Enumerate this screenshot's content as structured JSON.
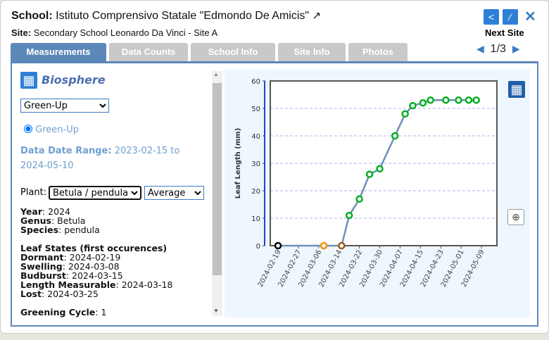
{
  "header": {
    "school_label": "School:",
    "school_name": "Istituto Comprensivo Statale \"Edmondo De Amicis\"",
    "site_label": "Site:",
    "site_name": "Secondary School Leonardo Da Vinci - Site A",
    "next_site": "Next Site",
    "pager": "1/3"
  },
  "tabs": [
    {
      "label": "Measurements",
      "active": true
    },
    {
      "label": "Data Counts"
    },
    {
      "label": "School Info"
    },
    {
      "label": "Site Info"
    },
    {
      "label": "Photos"
    }
  ],
  "panel": {
    "protocol": "Biosphere",
    "protocol_select": "Green-Up",
    "radio_label": "Green-Up",
    "date_range_label": "Data Date Range:",
    "date_range_value": "2023-02-15 to 2024-05-10",
    "plant_label": "Plant:",
    "plant_select": "Betula / pendula",
    "stat_select": "Average",
    "info": [
      {
        "k": "Year",
        "v": "2024"
      },
      {
        "k": "Genus",
        "v": "Betula"
      },
      {
        "k": "Species",
        "v": "pendula"
      }
    ],
    "leaf_states_title": "Leaf States (first occurences)",
    "leaf_states": [
      {
        "k": "Dormant",
        "v": "2024-02-19"
      },
      {
        "k": "Swelling",
        "v": "2024-03-08"
      },
      {
        "k": "Budburst",
        "v": "2024-03-15"
      },
      {
        "k": "Length Measurable",
        "v": "2024-03-18"
      },
      {
        "k": "Lost",
        "v": "2024-03-25"
      }
    ],
    "cycle_label": "Greening Cycle",
    "cycle_value": "1"
  },
  "colors": {
    "accent": "#2f7fd6",
    "tab_active": "#5b88b8",
    "line": "#6f8fb8",
    "dormant": "#000000",
    "swelling": "#f39200",
    "budburst": "#9a5b1a",
    "green": "#00b020"
  },
  "chart_data": {
    "type": "line",
    "ylabel": "Leaf Length (mm)",
    "xlabel": "",
    "ylim": [
      0,
      60
    ],
    "yticks": [
      0,
      10,
      20,
      30,
      40,
      50,
      60
    ],
    "xticks": [
      "2024-02-19",
      "2024-02-27",
      "2024-03-06",
      "2024-03-14",
      "2024-03-22",
      "2024-03-30",
      "2024-04-07",
      "2024-04-15",
      "2024-04-23",
      "2024-05-01",
      "2024-05-09"
    ],
    "grid": true,
    "points": [
      {
        "date": "2024-02-19",
        "value": 0,
        "state": "dormant"
      },
      {
        "date": "2024-03-08",
        "value": 0,
        "state": "swelling"
      },
      {
        "date": "2024-03-15",
        "value": 0,
        "state": "budburst"
      },
      {
        "date": "2024-03-18",
        "value": 11,
        "state": "green"
      },
      {
        "date": "2024-03-22",
        "value": 17,
        "state": "green"
      },
      {
        "date": "2024-03-26",
        "value": 26,
        "state": "green"
      },
      {
        "date": "2024-03-30",
        "value": 28,
        "state": "green"
      },
      {
        "date": "2024-04-05",
        "value": 40,
        "state": "green"
      },
      {
        "date": "2024-04-09",
        "value": 48,
        "state": "green"
      },
      {
        "date": "2024-04-12",
        "value": 51,
        "state": "green"
      },
      {
        "date": "2024-04-16",
        "value": 52,
        "state": "green"
      },
      {
        "date": "2024-04-19",
        "value": 53,
        "state": "green"
      },
      {
        "date": "2024-04-25",
        "value": 53,
        "state": "green"
      },
      {
        "date": "2024-04-30",
        "value": 53,
        "state": "green"
      },
      {
        "date": "2024-05-04",
        "value": 53,
        "state": "green"
      },
      {
        "date": "2024-05-07",
        "value": 53,
        "state": "green"
      }
    ]
  }
}
